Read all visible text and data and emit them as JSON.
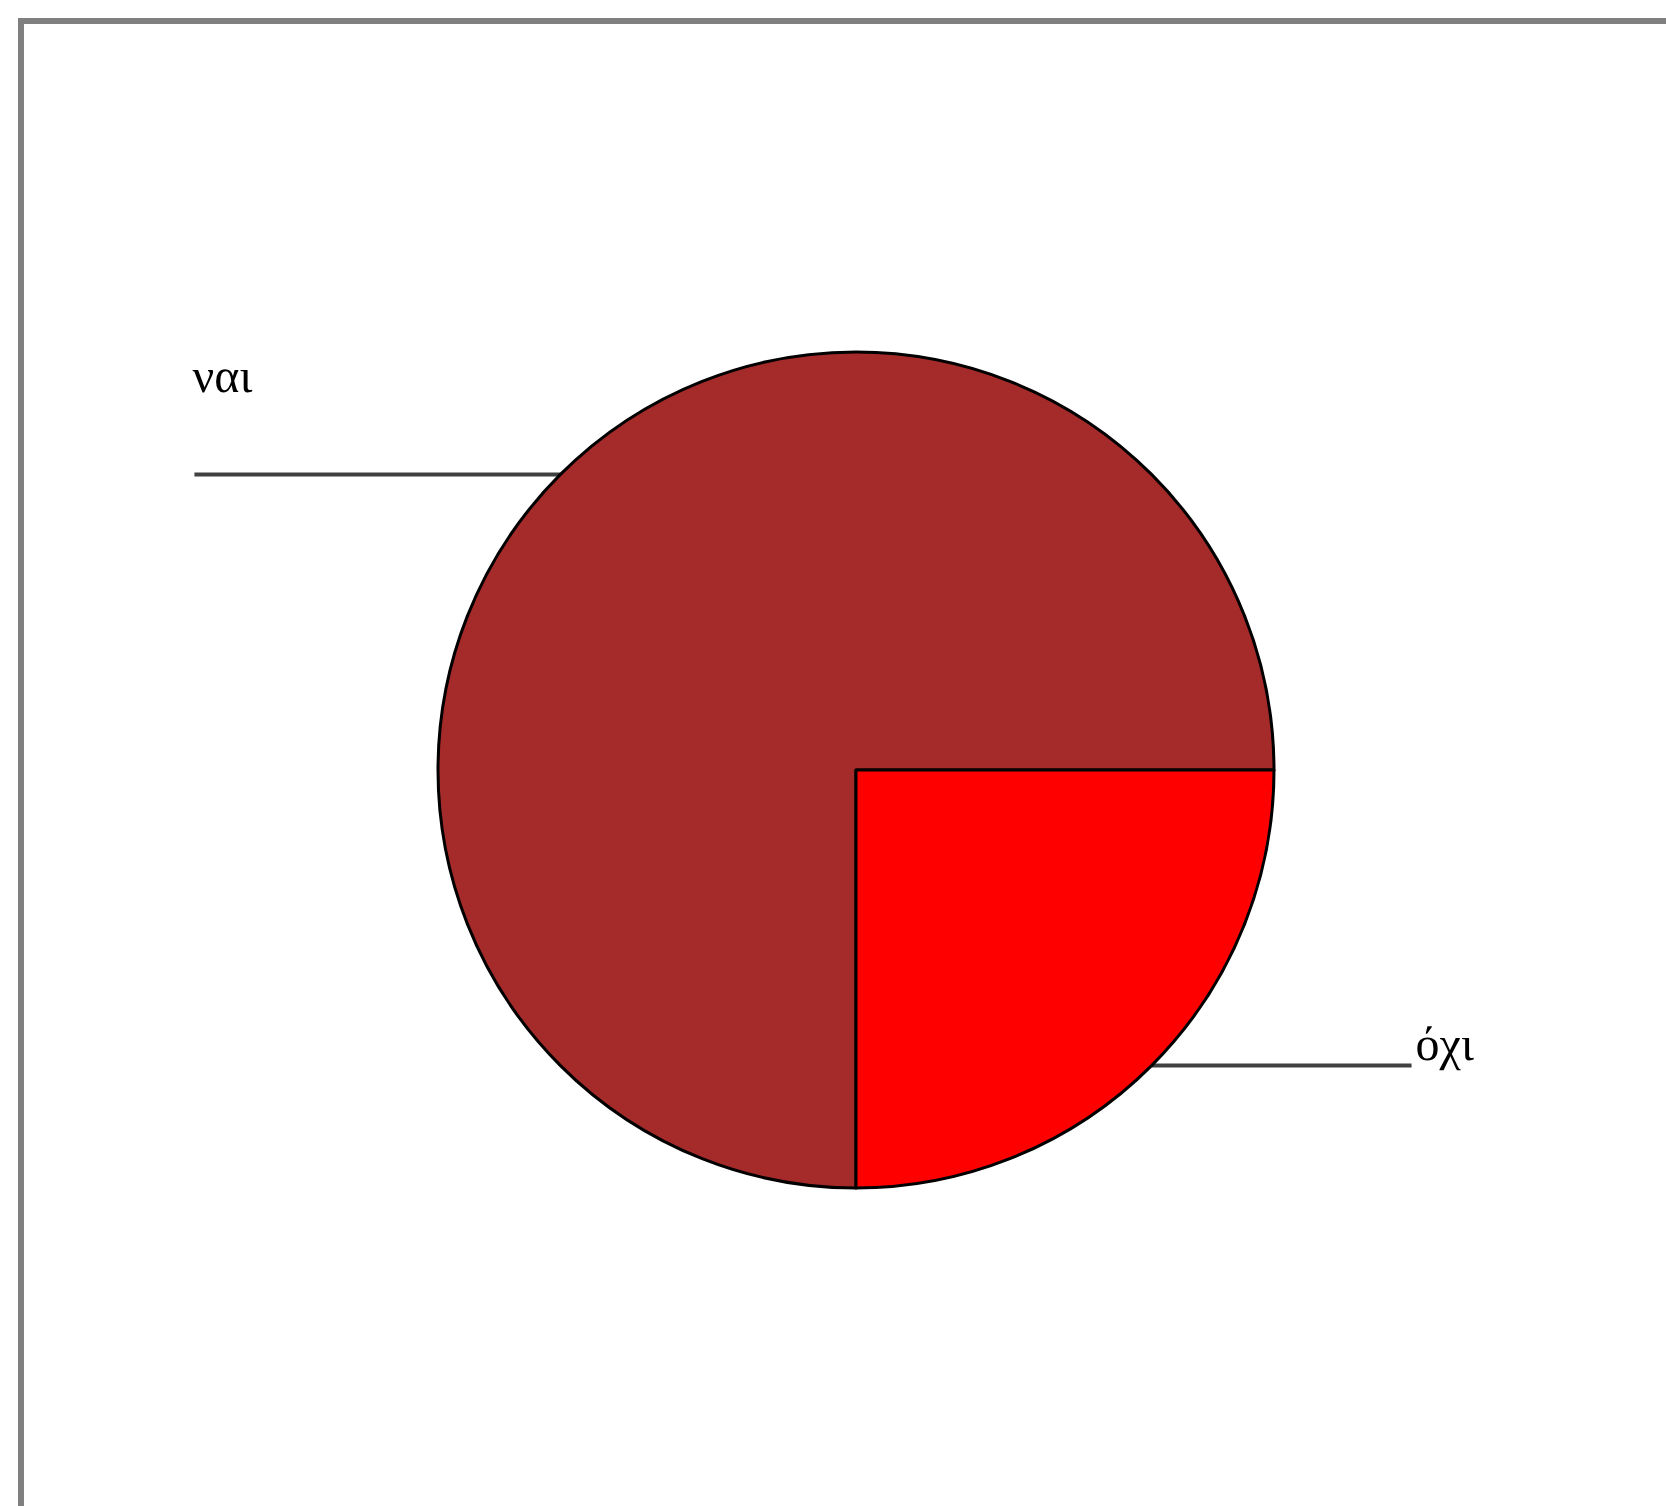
{
  "chart_data": {
    "type": "pie",
    "categories": [
      "ναι",
      "όχι"
    ],
    "values": [
      75,
      25
    ],
    "colors": [
      "#a52a2a",
      "#ff0000"
    ]
  }
}
